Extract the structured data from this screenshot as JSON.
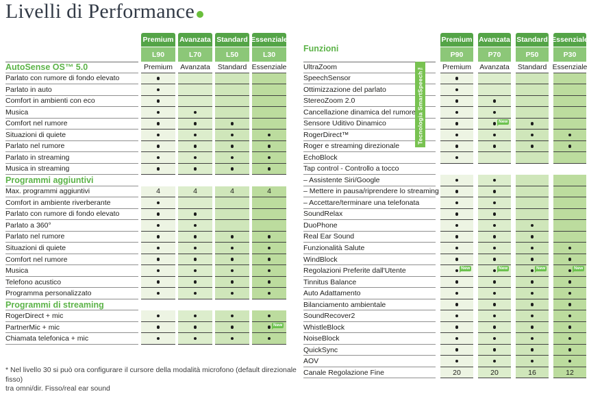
{
  "page": {
    "title": "Livelli di Performance",
    "footnote_line1": "* Nel livello 30 si può ora configurare il cursore della modalità microfono (default direzionale fisso)",
    "footnote_line2": "tra omni/dir. Fisso/real ear sound"
  },
  "badge_label": "New",
  "colors": {
    "header_top": "#54a447",
    "header_bottom": "#8cc778",
    "section_green": "#5cb348",
    "badge_green": "#6cc24f",
    "banner_green": "#78c251",
    "title_dot": "#6abf3c",
    "col_shades": [
      "#edf4e3",
      "#dcedcc",
      "#cfe6ba",
      "#bcdc9e"
    ]
  },
  "left_table": {
    "columns": [
      {
        "name": "Premium",
        "code": "L90"
      },
      {
        "name": "Avanzata",
        "code": "L70"
      },
      {
        "name": "Standard",
        "code": "L50"
      },
      {
        "name": "Essenziale",
        "code": "L30"
      }
    ],
    "rows": [
      {
        "label": "AutoSense OS™ 5.0",
        "style": "section",
        "mode": "labels",
        "cells": [
          "Premium",
          "Avanzata",
          "Standard",
          "Essenziale"
        ]
      },
      {
        "label": "Parlato con rumore di fondo elevato",
        "style": "normal",
        "cells": [
          "•",
          "",
          "",
          ""
        ]
      },
      {
        "label": "Parlato in auto",
        "style": "normal",
        "cells": [
          "•",
          "",
          "",
          ""
        ]
      },
      {
        "label": "Comfort in ambienti con eco",
        "style": "normal",
        "cells": [
          "•",
          "",
          "",
          ""
        ]
      },
      {
        "label": "Musica",
        "style": "normal",
        "cells": [
          "•",
          "•",
          "",
          ""
        ]
      },
      {
        "label": "Comfort nel rumore",
        "style": "normal",
        "cells": [
          "•",
          "•",
          "•",
          ""
        ]
      },
      {
        "label": "Situazioni di quiete",
        "style": "normal",
        "cells": [
          "•",
          "•",
          "•",
          "•"
        ]
      },
      {
        "label": "Parlato nel rumore",
        "style": "normal",
        "cells": [
          "•",
          "•",
          "•",
          "•"
        ]
      },
      {
        "label": "Parlato in streaming",
        "style": "normal",
        "cells": [
          "•",
          "•",
          "•",
          "•"
        ]
      },
      {
        "label": "Musica in streaming",
        "style": "normal",
        "cells": [
          "•",
          "•",
          "•",
          "•"
        ]
      },
      {
        "label": "Programmi aggiuntivi",
        "style": "section",
        "cells": null
      },
      {
        "label": "Max. programmi aggiuntivi",
        "style": "normal",
        "cells": [
          "4",
          "4",
          "4",
          "4"
        ]
      },
      {
        "label": "Comfort in ambiente riverberante",
        "style": "normal",
        "cells": [
          "•",
          "",
          "",
          ""
        ]
      },
      {
        "label": "Parlato con rumore di fondo elevato",
        "style": "normal",
        "cells": [
          "•",
          "•",
          "",
          ""
        ]
      },
      {
        "label": "Parlato a 360°",
        "style": "normal",
        "cells": [
          "•",
          "•",
          "",
          ""
        ]
      },
      {
        "label": "Parlato nel rumore",
        "style": "normal",
        "cells": [
          "•",
          "•",
          "•",
          "•"
        ]
      },
      {
        "label": "Situazioni di quiete",
        "style": "normal",
        "cells": [
          "•",
          "•",
          "•",
          "•"
        ]
      },
      {
        "label": "Comfort nel rumore",
        "style": "normal",
        "cells": [
          "•",
          "•",
          "•",
          "•"
        ]
      },
      {
        "label": "Musica",
        "style": "normal",
        "cells": [
          "•",
          "•",
          "•",
          "•"
        ]
      },
      {
        "label": "Telefono acustico",
        "style": "normal",
        "cells": [
          "•",
          "•",
          "•",
          "•"
        ]
      },
      {
        "label": "Programma personalizzato",
        "style": "normal",
        "cells": [
          "•",
          "•",
          "•",
          "•"
        ]
      },
      {
        "label": "Programmi di streaming",
        "style": "section",
        "cells": null
      },
      {
        "label": "RogerDirect + mic",
        "style": "normal",
        "cells": [
          "•",
          "•",
          "•",
          "•"
        ]
      },
      {
        "label": "PartnerMic + mic",
        "style": "normal",
        "cells": [
          "•",
          "•",
          "•",
          "•N"
        ]
      },
      {
        "label": "Chiamata telefonica + mic",
        "style": "normal",
        "cells": [
          "•",
          "•",
          "•",
          "•"
        ]
      }
    ]
  },
  "right_table": {
    "title": "Funzioni",
    "banner": "Tecnologia SmartSpeech™",
    "columns": [
      {
        "name": "Premium",
        "code": "P90"
      },
      {
        "name": "Avanzata",
        "code": "P70"
      },
      {
        "name": "Standard",
        "code": "P50"
      },
      {
        "name": "Essenziale",
        "code": "P30"
      }
    ],
    "rows": [
      {
        "label": "UltraZoom",
        "style": "normal",
        "mode": "labels",
        "cells": [
          "Premium",
          "Avanzata",
          "Standard",
          "Essenziale"
        ]
      },
      {
        "label": "SpeechSensor",
        "style": "normal",
        "cells": [
          "•",
          "",
          "",
          ""
        ]
      },
      {
        "label": "Ottimizzazione del parlato",
        "style": "normal",
        "cells": [
          "•",
          "",
          "",
          ""
        ]
      },
      {
        "label": "StereoZoom 2.0",
        "style": "normal",
        "cells": [
          "•",
          "•",
          "",
          ""
        ]
      },
      {
        "label": "Cancellazione dinamica del rumore",
        "style": "normal",
        "cells": [
          "•",
          "•",
          "",
          ""
        ]
      },
      {
        "label": "Sensore Uditivo Dinamico",
        "style": "normal",
        "cells": [
          "•",
          "•N",
          "•",
          ""
        ]
      },
      {
        "label": "RogerDirect™",
        "style": "normal",
        "cells": [
          "•",
          "•",
          "•",
          "•"
        ]
      },
      {
        "label": "Roger e streaming direzionale",
        "style": "normal",
        "cells": [
          "•",
          "•",
          "•",
          "•"
        ]
      },
      {
        "label": "EchoBlock",
        "style": "normal",
        "cells": [
          "•",
          "",
          "",
          ""
        ]
      },
      {
        "label": "Tap control - Controllo a tocco",
        "style": "normal",
        "cells": null
      },
      {
        "label": "– Assistente Siri/Google",
        "style": "sub",
        "cells": [
          "•",
          "•",
          "",
          ""
        ]
      },
      {
        "label": "– Mettere in pausa/riprendere lo streaming",
        "style": "sub",
        "cells": [
          "•",
          "•",
          "",
          ""
        ]
      },
      {
        "label": "– Accettare/terminare una telefonata",
        "style": "sub",
        "cells": [
          "•",
          "•",
          "",
          ""
        ]
      },
      {
        "label": "SoundRelax",
        "style": "normal",
        "cells": [
          "•",
          "•",
          "",
          ""
        ]
      },
      {
        "label": "DuoPhone",
        "style": "normal",
        "cells": [
          "•",
          "•",
          "•",
          ""
        ]
      },
      {
        "label": "Real Ear Sound",
        "style": "normal",
        "cells": [
          "•",
          "•",
          "•",
          ""
        ]
      },
      {
        "label": "Funzionalità Salute",
        "style": "normal",
        "cells": [
          "•",
          "•",
          "•",
          "•"
        ]
      },
      {
        "label": "WindBlock",
        "style": "normal",
        "cells": [
          "•",
          "•",
          "•",
          "•"
        ]
      },
      {
        "label": "Regolazioni Preferite dall'Utente",
        "style": "normal",
        "cells": [
          "•N",
          "•N",
          "•N",
          "•N"
        ]
      },
      {
        "label": "Tinnitus Balance",
        "style": "normal",
        "cells": [
          "•",
          "•",
          "•",
          "•"
        ]
      },
      {
        "label": "Auto Adattamento",
        "style": "normal",
        "cells": [
          "•",
          "•",
          "•",
          "•"
        ]
      },
      {
        "label": "Bilanciamento ambientale",
        "style": "normal",
        "cells": [
          "•",
          "•",
          "•",
          "•"
        ]
      },
      {
        "label": "SoundRecover2",
        "style": "normal",
        "cells": [
          "•",
          "•",
          "•",
          "•"
        ]
      },
      {
        "label": "WhistleBlock",
        "style": "normal",
        "cells": [
          "•",
          "•",
          "•",
          "•"
        ]
      },
      {
        "label": "NoiseBlock",
        "style": "normal",
        "cells": [
          "•",
          "•",
          "•",
          "•"
        ]
      },
      {
        "label": "QuickSync",
        "style": "normal",
        "cells": [
          "•",
          "•",
          "•",
          "•"
        ]
      },
      {
        "label": "AOV",
        "style": "normal",
        "cells": [
          "•",
          "•",
          "•",
          "•"
        ]
      },
      {
        "label": "Canale Regolazione Fine",
        "style": "normal",
        "cells": [
          "20",
          "20",
          "16",
          "12"
        ]
      }
    ]
  }
}
